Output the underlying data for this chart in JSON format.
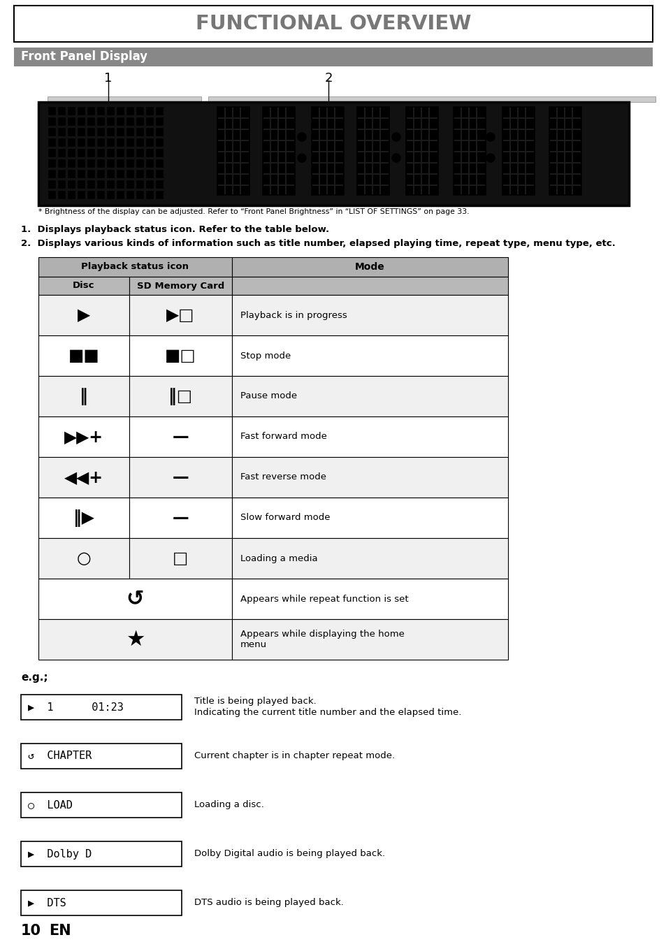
{
  "title": "FUNCTIONAL OVERVIEW",
  "section_header": "Front Panel Display",
  "footnote": "* Brightness of the display can be adjusted. Refer to “Front Panel Brightness” in “LIST OF SETTINGS” on page 33.",
  "numbered_items": [
    "Displays playback status icon. Refer to the table below.",
    "Displays various kinds of information such as title number, elapsed playing time, repeat type, menu type, etc."
  ],
  "table_rows": [
    {
      "disc_sym": "▶",
      "sd_sym": "▶□",
      "mode": "Playback is in progress",
      "merged": false
    },
    {
      "disc_sym": "■■",
      "sd_sym": "■□",
      "mode": "Stop mode",
      "merged": false
    },
    {
      "disc_sym": "‖",
      "sd_sym": "‖□",
      "mode": "Pause mode",
      "merged": false
    },
    {
      "disc_sym": "▶▶+",
      "sd_sym": "—",
      "mode": "Fast forward mode",
      "merged": false
    },
    {
      "disc_sym": "◀◀+",
      "sd_sym": "—",
      "mode": "Fast reverse mode",
      "merged": false
    },
    {
      "disc_sym": "‖▶",
      "sd_sym": "—",
      "mode": "Slow forward mode",
      "merged": false
    },
    {
      "disc_sym": "○",
      "sd_sym": "□",
      "mode": "Loading a media",
      "merged": false
    },
    {
      "disc_sym": "",
      "sd_sym": "↺",
      "mode": "Appears while repeat function is set",
      "merged": true
    },
    {
      "disc_sym": "",
      "sd_sym": "★",
      "mode": "Appears while displaying the home\nmenu",
      "merged": true
    }
  ],
  "eg_label": "e.g.;",
  "eg_items": [
    {
      "display": "▶  1      01:23",
      "desc1": "Title is being played back.",
      "desc2": "Indicating the current title number and the elapsed time."
    },
    {
      "display": "↺  CHAPTER",
      "desc1": "Current chapter is in chapter repeat mode.",
      "desc2": ""
    },
    {
      "display": "○  LOAD",
      "desc1": "Loading a disc.",
      "desc2": ""
    },
    {
      "display": "▶  Dolby D",
      "desc1": "Dolby Digital audio is being played back.",
      "desc2": ""
    },
    {
      "display": "▶  DTS",
      "desc1": "DTS audio is being played back.",
      "desc2": ""
    }
  ],
  "page_number": "10",
  "page_lang": "EN"
}
